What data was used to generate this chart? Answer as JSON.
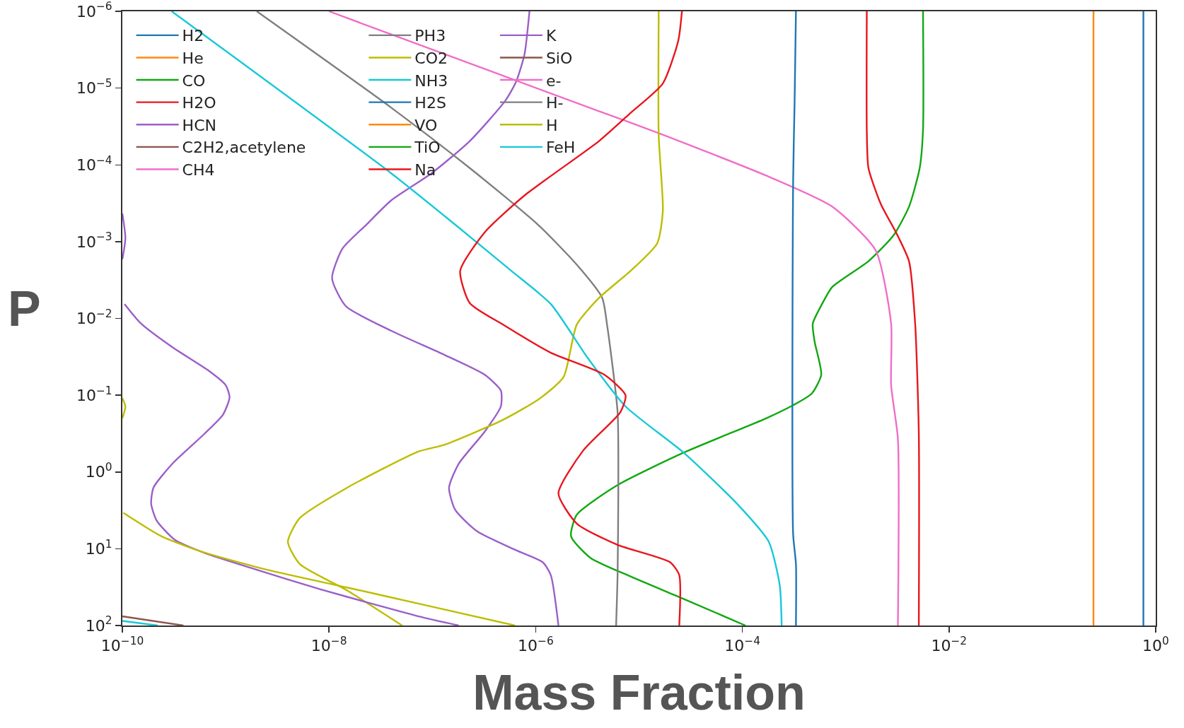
{
  "chart_data": {
    "type": "line",
    "xlabel": "Mass Fraction",
    "ylabel": "P",
    "log": "xy",
    "legend": "top left",
    "grid": false,
    "xlim": [
      1e-10,
      1
    ],
    "ylim": [
      100,
      1e-06
    ],
    "xticks": [
      {
        "value": 1e-10,
        "label": "10$^{−10}$"
      },
      {
        "value": 1e-08,
        "label": "10$^{−8}$"
      },
      {
        "value": 1e-06,
        "label": "10$^{−6}$"
      },
      {
        "value": 0.0001,
        "label": "10$^{−4}$"
      },
      {
        "value": 0.01,
        "label": "10$^{−2}$"
      },
      {
        "value": 1,
        "label": "10$^{0}$"
      }
    ],
    "yticks": [
      {
        "value": 1e-06,
        "label": "10$^{−6}$"
      },
      {
        "value": 1e-05,
        "label": "10$^{−5}$"
      },
      {
        "value": 0.0001,
        "label": "10$^{−4}$"
      },
      {
        "value": 0.001,
        "label": "10$^{−3}$"
      },
      {
        "value": 0.01,
        "label": "10$^{−2}$"
      },
      {
        "value": 0.1,
        "label": "10$^{−1}$"
      },
      {
        "value": 1,
        "label": "10$^{0}$"
      },
      {
        "value": 10,
        "label": "10$^{1}$"
      },
      {
        "value": 100,
        "label": "10$^{2}$"
      }
    ],
    "series": [
      {
        "name": "H2",
        "color": "#1f77b4",
        "x": [
          0.76,
          0.76
        ],
        "values": [
          1e-06,
          100
        ]
      },
      {
        "name": "He",
        "color": "#ff8a10",
        "x": [
          0.25,
          0.25
        ],
        "values": [
          1e-06,
          100
        ]
      },
      {
        "name": "CO",
        "color": "#12a812",
        "x": [
          0.0056,
          0.0056,
          0.0052,
          0.0041,
          0.0029,
          0.00166,
          0.00074,
          0.00059,
          0.00048,
          0.0005,
          0.00058,
          0.00047,
          0.00031,
          0.00017,
          2.7e-05,
          6.2e-06,
          2.5e-06,
          2.2e-06,
          3.4e-06,
          8.3e-06,
          2.7e-05,
          0.000107
        ],
        "values": [
          1e-06,
          3.5e-05,
          0.00011,
          0.00035,
          0.00083,
          0.0018,
          0.0039,
          0.0065,
          0.0117,
          0.02,
          0.054,
          0.095,
          0.135,
          0.2,
          0.56,
          1.48,
          3.6,
          6.9,
          13.2,
          23,
          45,
          100
        ]
      },
      {
        "name": "H2O",
        "color": "#e8161e",
        "x": [
          0.0016,
          0.0016,
          0.00166,
          0.0022,
          0.0031,
          0.0041,
          0.0047,
          0.0051,
          0.0051
        ],
        "values": [
          1e-06,
          3.5e-05,
          0.00011,
          0.00033,
          0.00078,
          0.0018,
          0.0117,
          0.32,
          100
        ]
      },
      {
        "name": "HCN",
        "color": "#9b5fc8",
        "x": [
          8.7e-07,
          7.8e-07,
          6.5e-07,
          5.1e-07,
          2.3e-07,
          9.8e-08,
          4e-08,
          2.3e-08,
          1.35e-08,
          1.07e-08,
          1.45e-08,
          4e-08,
          1.32e-07,
          3.2e-07,
          4.6e-07,
          4.6e-07,
          3.2e-07,
          1.8e-07,
          1.45e-07,
          1.66e-07,
          2.7e-07,
          6.5e-07,
          1.17e-06,
          1.4e-06,
          1.66e-06
        ],
        "values": [
          1e-06,
          3.6e-06,
          8.1e-06,
          1.45e-05,
          4.9e-05,
          0.000129,
          0.00029,
          0.0006,
          0.00123,
          0.003,
          0.0069,
          0.0145,
          0.03,
          0.054,
          0.087,
          0.14,
          0.3,
          0.78,
          1.6,
          3.1,
          5.9,
          10.5,
          15,
          22,
          100
        ]
      },
      {
        "name": "C2H2,acetylene",
        "color": "#8c564b",
        "x": [
          1e-10,
          3.9e-10
        ],
        "values": [
          76,
          100
        ]
      },
      {
        "name": "CH4",
        "color": "#f06ec8",
        "x": [
          1e-08,
          4e-08,
          4.1e-06,
          1.5e-05,
          0.00017,
          0.00074,
          0.00195,
          0.00275,
          0.00275,
          0.0032,
          0.0032
        ],
        "values": [
          1e-06,
          2e-06,
          2e-05,
          3.8e-05,
          0.000138,
          0.00035,
          0.0013,
          0.0117,
          0.074,
          0.37,
          100
        ]
      },
      {
        "name": "PH3",
        "color": "#7f7f7f",
        "x": [
          2e-09,
          4e-08,
          2.3e-07,
          1.05e-06,
          2.5e-06,
          4.4e-06,
          4.9e-06,
          6.2e-06,
          6.3e-06,
          6.2e-06,
          6e-06
        ],
        "values": [
          1e-06,
          1.8e-05,
          0.00011,
          0.0006,
          0.002,
          0.0054,
          0.012,
          0.166,
          1.9,
          22,
          100
        ]
      },
      {
        "name": "CO2",
        "color": "#bdbd00",
        "x": [
          1.55e-05,
          1.55e-05,
          1.7e-05,
          1.5e-05,
          8.3e-06,
          4.1e-06,
          2.5e-06,
          1.86e-06,
          1.1e-06,
          4.8e-07,
          1.32e-07,
          7.4e-08,
          1.5e-08,
          5.2e-09,
          4e-09,
          5.2e-09,
          1.5e-08,
          5.1e-08
        ],
        "values": [
          1e-06,
          4.2e-05,
          0.0004,
          0.00105,
          0.0024,
          0.0054,
          0.012,
          0.058,
          0.11,
          0.21,
          0.44,
          0.54,
          1.6,
          4.0,
          8.1,
          15.8,
          35,
          100
        ]
      },
      {
        "name": "NH3",
        "color": "#17c8d8",
        "x": [
          3e-10,
          4e-08,
          1.66e-07,
          5.8e-07,
          1.4e-06,
          3.2e-06,
          7.4e-06,
          2.7e-05,
          8.9e-05,
          0.00018,
          0.00023,
          0.00024
        ],
        "values": [
          1e-06,
          0.000129,
          0.0006,
          0.0024,
          0.0065,
          0.033,
          0.14,
          0.56,
          2.6,
          8.1,
          30,
          100
        ]
      },
      {
        "name": "H2S",
        "color": "#1f77b4",
        "x": [
          0.00033,
          0.00032,
          0.00031,
          0.00031,
          0.00033,
          0.00033
        ],
        "values": [
          1e-06,
          1.6e-05,
          0.00016,
          6.5,
          15.8,
          100
        ]
      },
      {
        "name": "VO",
        "color": "#ff8a10"
      },
      {
        "name": "TiO",
        "color": "#12a812"
      },
      {
        "name": "Na",
        "color": "#e8161e",
        "x": [
          2.6e-05,
          2.4e-05,
          1.7e-05,
          8.3e-06,
          4.1e-06,
          7.8e-07,
          3.2e-07,
          1.86e-07,
          2.3e-07,
          4.8e-07,
          1.4e-06,
          4.6e-06,
          7.4e-06,
          6.6e-06,
          2.9e-06,
          1.66e-06,
          2.5e-06,
          6.2e-06,
          2e-05,
          2.45e-05,
          2.45e-05
        ],
        "values": [
          1e-06,
          2.4e-06,
          8.7e-06,
          2.1e-05,
          4.9e-05,
          0.00025,
          0.00076,
          0.0024,
          0.0063,
          0.012,
          0.028,
          0.054,
          0.1,
          0.166,
          0.52,
          1.9,
          4.7,
          8.9,
          15,
          22,
          100
        ]
      },
      {
        "name": "K",
        "color": "#9b5fc8",
        "x": [
          1e-10,
          1.07e-10,
          1e-10,
          null,
          1.05e-10,
          1.5e-10,
          3.05e-10,
          7e-10,
          1e-09,
          1.09e-09,
          9.4e-10,
          6.2e-10,
          3.05e-10,
          2e-10,
          1.9e-10,
          2.15e-10,
          3.2e-10,
          6.2e-10,
          1.9e-09,
          8.4e-09,
          2.75e-08,
          7.4e-08,
          1.8e-07
        ],
        "values": [
          0.00043,
          0.0009,
          0.0017,
          null,
          0.0065,
          0.0115,
          0.0237,
          0.049,
          0.074,
          0.107,
          0.18,
          0.32,
          0.78,
          1.6,
          2.6,
          4.3,
          7.6,
          11.3,
          18.4,
          34,
          53,
          76,
          100
        ]
      },
      {
        "name": "SiO",
        "color": "#8c564b"
      },
      {
        "name": "e-",
        "color": "#f06ec8"
      },
      {
        "name": "H-",
        "color": "#7f7f7f"
      },
      {
        "name": "H",
        "color": "#bdbd00",
        "x": [
          1e-10,
          1.07e-10,
          1e-10,
          null,
          1.02e-10,
          2.4e-10,
          6.2e-10,
          2.6e-09,
          1.5e-08,
          7.4e-08,
          6.3e-07
        ],
        "values": [
          0.11,
          0.14,
          0.2,
          null,
          3.4,
          6.9,
          11.2,
          19,
          32,
          52,
          100
        ]
      },
      {
        "name": "FeH",
        "color": "#17c8d8",
        "x": [
          1e-10,
          2.2e-10
        ],
        "values": [
          87,
          100
        ]
      }
    ]
  }
}
